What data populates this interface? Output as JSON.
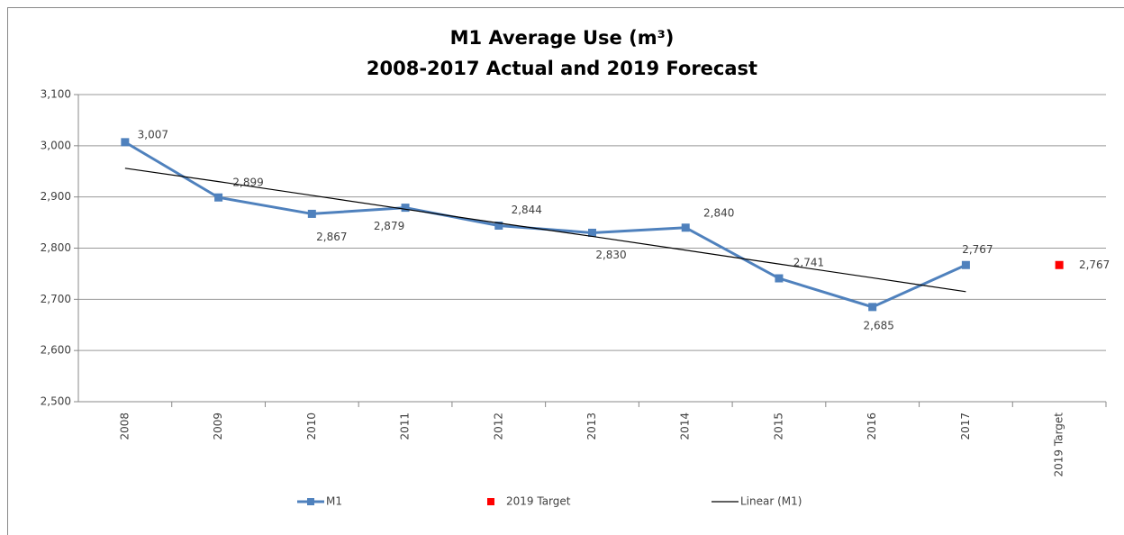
{
  "chart_data": {
    "type": "line",
    "title": "M1 Average Use (m³)",
    "subtitle": "2008-2017 Actual and 2019 Forecast",
    "categories": [
      "2008",
      "2009",
      "2010",
      "2011",
      "2012",
      "2013",
      "2014",
      "2015",
      "2016",
      "2017",
      "2019 Target"
    ],
    "series": [
      {
        "name": "M1",
        "color": "#4f81bd",
        "style": "line-marker",
        "values": [
          3007,
          2899,
          2867,
          2879,
          2844,
          2830,
          2840,
          2741,
          2685,
          2767,
          null
        ],
        "value_labels": [
          "3,007",
          "2,899",
          "2,867",
          "2,879",
          "2,844",
          "2,830",
          "2,840",
          "2,741",
          "2,685",
          "2,767",
          null
        ]
      },
      {
        "name": "2019 Target",
        "color": "#ff0000",
        "style": "marker",
        "values": [
          null,
          null,
          null,
          null,
          null,
          null,
          null,
          null,
          null,
          null,
          2767
        ],
        "value_labels": [
          null,
          null,
          null,
          null,
          null,
          null,
          null,
          null,
          null,
          null,
          "2,767"
        ]
      },
      {
        "name": "Linear (M1)",
        "color": "#000000",
        "style": "line",
        "values": [
          2956,
          2930,
          2903,
          2876,
          2849,
          2823,
          2796,
          2769,
          2742,
          2715,
          null
        ]
      }
    ],
    "ylim": [
      2500,
      3100
    ],
    "yticks": [
      {
        "value": 2500,
        "label": "2,500"
      },
      {
        "value": 2600,
        "label": "2,600"
      },
      {
        "value": 2700,
        "label": "2,700"
      },
      {
        "value": 2800,
        "label": "2,800"
      },
      {
        "value": 2900,
        "label": "2,900"
      },
      {
        "value": 3000,
        "label": "3,000"
      },
      {
        "value": 3100,
        "label": "3,100"
      }
    ],
    "grid": true,
    "legend": "bottom"
  }
}
